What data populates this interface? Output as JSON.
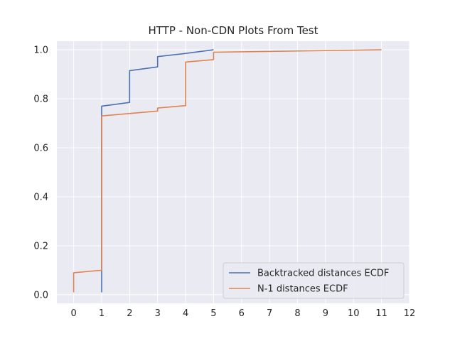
{
  "chart_data": {
    "type": "line",
    "title": "HTTP - Non-CDN Plots From Test",
    "xlabel": "",
    "ylabel": "",
    "xlim": [
      -0.6,
      12
    ],
    "ylim": [
      -0.035,
      1.035
    ],
    "xticks": [
      "0",
      "1",
      "2",
      "3",
      "4",
      "5",
      "6",
      "7",
      "8",
      "9",
      "10",
      "11",
      "12"
    ],
    "yticks": [
      "0.0",
      "0.2",
      "0.4",
      "0.6",
      "0.8",
      "1.0"
    ],
    "grid": true,
    "legend_position": "lower-right",
    "series": [
      {
        "name": "Backtracked distances ECDF",
        "color": "#4c72b0",
        "x": [
          1,
          1,
          1,
          2,
          2,
          3,
          3,
          4,
          5
        ],
        "y": [
          0.01,
          0.77,
          0.77,
          0.785,
          0.915,
          0.93,
          0.972,
          0.985,
          1.0
        ]
      },
      {
        "name": "N-1 distances ECDF",
        "color": "#dd8452",
        "x": [
          0,
          0,
          1,
          1,
          3,
          3,
          4,
          4,
          5,
          5,
          11
        ],
        "y": [
          0.01,
          0.09,
          0.1,
          0.73,
          0.75,
          0.762,
          0.772,
          0.95,
          0.96,
          0.99,
          1.0
        ]
      }
    ]
  },
  "plot_style": {
    "background": "#eaeaf2",
    "grid_color": "#ffffff"
  }
}
